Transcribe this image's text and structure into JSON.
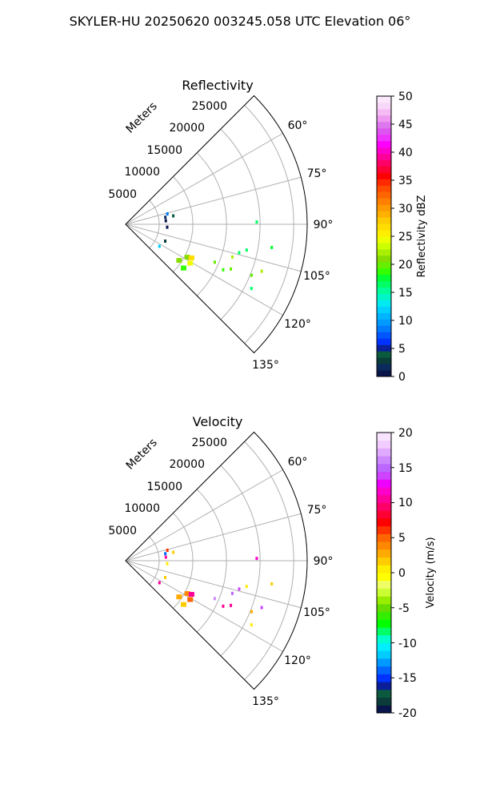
{
  "figure": {
    "suptitle": "SKYLER-HU  20250620  003245.058 UTC Elevation 06°"
  },
  "panels": [
    {
      "title": "Reflectivity",
      "radial_axis_label": "Meters",
      "radial_ticks": [
        "5000",
        "10000",
        "15000",
        "20000",
        "25000"
      ],
      "angle_ticks": [
        "60°",
        "75°",
        "90°",
        "105°",
        "120°",
        "135°"
      ],
      "colorbar": {
        "label": "Reflectivity dBZ",
        "ticks": [
          "0",
          "5",
          "10",
          "15",
          "20",
          "25",
          "30",
          "35",
          "40",
          "45",
          "50"
        ]
      }
    },
    {
      "title": "Velocity",
      "radial_axis_label": "Meters",
      "radial_ticks": [
        "5000",
        "10000",
        "15000",
        "20000",
        "25000"
      ],
      "angle_ticks": [
        "60°",
        "75°",
        "90°",
        "105°",
        "120°",
        "135°"
      ],
      "colorbar": {
        "label": "Velocity (m/s)",
        "ticks": [
          "-20",
          "-15",
          "-10",
          "-5",
          "0",
          "5",
          "10",
          "15",
          "20"
        ]
      }
    }
  ],
  "chart_data": [
    {
      "type": "heatmap",
      "projection": "polar",
      "title": "Reflectivity",
      "angle_range_deg": [
        45,
        135
      ],
      "angle_tick_values": [
        60,
        75,
        90,
        105,
        120,
        135
      ],
      "radial_range": [
        0,
        27000
      ],
      "radial_tick_values": [
        5000,
        10000,
        15000,
        20000,
        25000
      ],
      "colorbar_range": [
        0,
        50
      ],
      "colorbar_tick_values": [
        0,
        5,
        10,
        15,
        20,
        25,
        30,
        35,
        40,
        45,
        50
      ],
      "grid": true,
      "echo_cells": [
        {
          "az": 76,
          "r": 6400,
          "value": 8
        },
        {
          "az": 80,
          "r": 6000,
          "value": 2
        },
        {
          "az": 80,
          "r": 7200,
          "value": 4
        },
        {
          "az": 85,
          "r": 6000,
          "value": 1
        },
        {
          "az": 94,
          "r": 6200,
          "value": 1
        },
        {
          "az": 89,
          "r": 19500,
          "value": 16
        },
        {
          "az": 102,
          "r": 18400,
          "value": 16
        },
        {
          "az": 104,
          "r": 17400,
          "value": 17
        },
        {
          "az": 99,
          "r": 22000,
          "value": 18
        },
        {
          "az": 118,
          "r": 10400,
          "value": 21
        },
        {
          "az": 117,
          "r": 11000,
          "value": 27
        },
        {
          "az": 121,
          "r": 11200,
          "value": 24
        },
        {
          "az": 124,
          "r": 9600,
          "value": 21
        },
        {
          "az": 127,
          "r": 10800,
          "value": 19
        },
        {
          "az": 113,
          "r": 14400,
          "value": 20
        },
        {
          "az": 107,
          "r": 16600,
          "value": 22
        },
        {
          "az": 113,
          "r": 17000,
          "value": 20
        },
        {
          "az": 115,
          "r": 16000,
          "value": 19
        },
        {
          "az": 109,
          "r": 21400,
          "value": 22
        },
        {
          "az": 112,
          "r": 20200,
          "value": 20
        },
        {
          "az": 117,
          "r": 21000,
          "value": 17
        },
        {
          "az": 113,
          "r": 6400,
          "value": 3
        },
        {
          "az": 123,
          "r": 6000,
          "value": 12
        }
      ]
    },
    {
      "type": "heatmap",
      "projection": "polar",
      "title": "Velocity",
      "angle_range_deg": [
        45,
        135
      ],
      "angle_tick_values": [
        60,
        75,
        90,
        105,
        120,
        135
      ],
      "radial_range": [
        0,
        27000
      ],
      "radial_tick_values": [
        5000,
        10000,
        15000,
        20000,
        25000
      ],
      "colorbar_range": [
        -20,
        20
      ],
      "colorbar_tick_values": [
        -20,
        -15,
        -10,
        -5,
        0,
        5,
        10,
        15,
        20
      ],
      "grid": true,
      "echo_cells": [
        {
          "az": 76,
          "r": 6400,
          "value": 6
        },
        {
          "az": 80,
          "r": 6000,
          "value": -14
        },
        {
          "az": 80,
          "r": 7200,
          "value": 2
        },
        {
          "az": 85,
          "r": 6000,
          "value": 10
        },
        {
          "az": 94,
          "r": 6200,
          "value": 1
        },
        {
          "az": 89,
          "r": 19500,
          "value": 12
        },
        {
          "az": 102,
          "r": 18400,
          "value": 1
        },
        {
          "az": 104,
          "r": 17400,
          "value": 14
        },
        {
          "az": 99,
          "r": 22000,
          "value": 2
        },
        {
          "az": 118,
          "r": 10400,
          "value": 4
        },
        {
          "az": 117,
          "r": 11000,
          "value": 11
        },
        {
          "az": 121,
          "r": 11200,
          "value": 5
        },
        {
          "az": 124,
          "r": 9600,
          "value": 3
        },
        {
          "az": 127,
          "r": 10800,
          "value": 2
        },
        {
          "az": 113,
          "r": 14400,
          "value": 16
        },
        {
          "az": 107,
          "r": 16600,
          "value": 15
        },
        {
          "az": 113,
          "r": 17000,
          "value": 10
        },
        {
          "az": 115,
          "r": 16000,
          "value": 11
        },
        {
          "az": 109,
          "r": 21400,
          "value": 14
        },
        {
          "az": 112,
          "r": 20200,
          "value": 3
        },
        {
          "az": 117,
          "r": 21000,
          "value": 1
        },
        {
          "az": 113,
          "r": 6400,
          "value": 2
        },
        {
          "az": 123,
          "r": 6000,
          "value": 11
        }
      ]
    }
  ]
}
